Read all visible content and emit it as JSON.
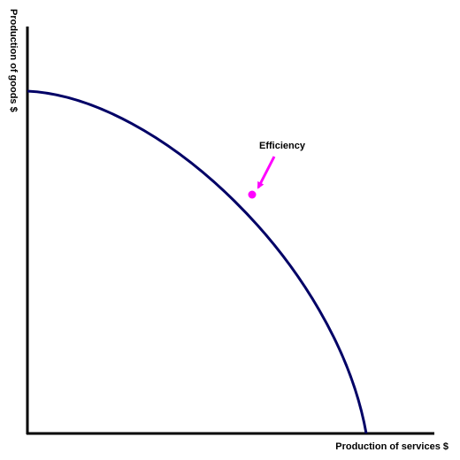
{
  "axes": {
    "y_label": "Production of goods $",
    "x_label": "Production of services $"
  },
  "annotation": {
    "label": "Efficiency"
  }
}
